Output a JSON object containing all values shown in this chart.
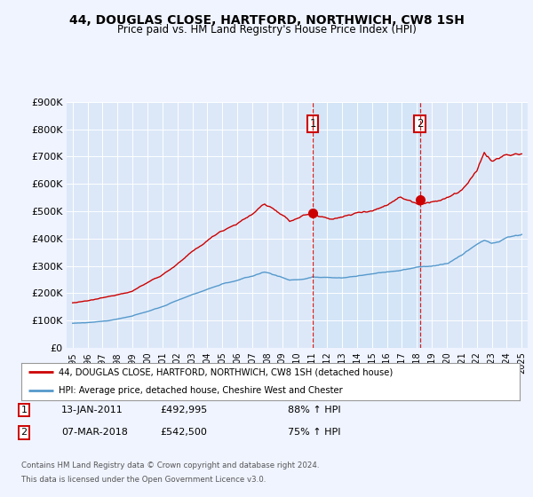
{
  "title": "44, DOUGLAS CLOSE, HARTFORD, NORTHWICH, CW8 1SH",
  "subtitle": "Price paid vs. HM Land Registry's House Price Index (HPI)",
  "bg_color": "#f0f4ff",
  "plot_bg_color": "#dce8f8",
  "highlight_color": "#ccddf5",
  "grid_color": "#c8c8c8",
  "red_line_color": "#cc0000",
  "blue_line_color": "#5599cc",
  "sale1_date": "13-JAN-2011",
  "sale1_price": "£492,995",
  "sale1_hpi": "88% ↑ HPI",
  "sale1_x": 2011.04,
  "sale1_y": 492995,
  "sale2_date": "07-MAR-2018",
  "sale2_price": "£542,500",
  "sale2_hpi": "75% ↑ HPI",
  "sale2_x": 2018.2,
  "sale2_y": 542500,
  "legend_line1": "44, DOUGLAS CLOSE, HARTFORD, NORTHWICH, CW8 1SH (detached house)",
  "legend_line2": "HPI: Average price, detached house, Cheshire West and Chester",
  "footer1": "Contains HM Land Registry data © Crown copyright and database right 2024.",
  "footer2": "This data is licensed under the Open Government Licence v3.0.",
  "ylim_min": 0,
  "ylim_max": 900000,
  "yticks": [
    0,
    100000,
    200000,
    300000,
    400000,
    500000,
    600000,
    700000,
    800000,
    900000
  ],
  "ytick_labels": [
    "£0",
    "£100K",
    "£200K",
    "£300K",
    "£400K",
    "£500K",
    "£600K",
    "£700K",
    "£800K",
    "£900K"
  ],
  "xlim_min": 1994.6,
  "xlim_max": 2025.4,
  "xticks": [
    1995,
    1996,
    1997,
    1998,
    1999,
    2000,
    2001,
    2002,
    2003,
    2004,
    2005,
    2006,
    2007,
    2008,
    2009,
    2010,
    2011,
    2012,
    2013,
    2014,
    2015,
    2016,
    2017,
    2018,
    2019,
    2020,
    2021,
    2022,
    2023,
    2024,
    2025
  ]
}
